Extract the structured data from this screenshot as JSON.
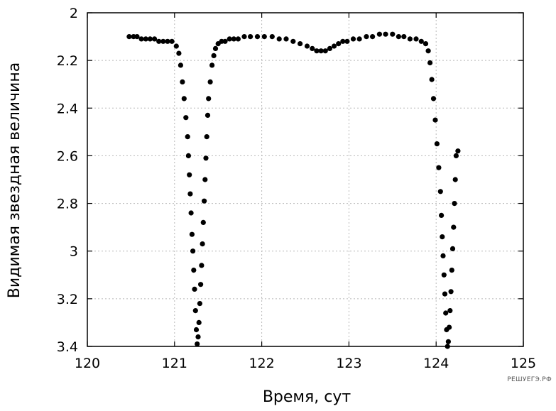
{
  "chart_data": {
    "type": "scatter",
    "xlabel": "Время, сут",
    "ylabel": "Видимая звездная величина",
    "xlim": [
      120,
      125
    ],
    "ylim": [
      2,
      3.4
    ],
    "y_inverted": true,
    "grid": true,
    "xticks": [
      "120",
      "121",
      "122",
      "123",
      "124",
      "125"
    ],
    "yticks": [
      "2",
      "2.2",
      "2.4",
      "2.6",
      "2.8",
      "3",
      "3.2",
      "3.4"
    ],
    "point_color": "#000000",
    "series": [
      {
        "x": [
          120.48,
          120.53,
          120.57,
          120.62,
          120.67,
          120.72,
          120.77,
          120.82,
          120.87,
          120.92,
          120.97,
          121.02,
          121.05,
          121.07,
          121.09,
          121.11,
          121.13,
          121.15,
          121.16,
          121.17,
          121.18,
          121.19,
          121.2,
          121.21,
          121.22,
          121.23,
          121.24,
          121.25,
          121.26,
          121.27,
          121.28,
          121.29,
          121.3,
          121.31,
          121.32,
          121.33,
          121.34,
          121.35,
          121.36,
          121.37,
          121.38,
          121.39,
          121.41,
          121.43,
          121.45,
          121.47,
          121.5,
          121.54,
          121.58,
          121.63,
          121.68,
          121.73,
          121.8,
          121.87,
          121.95,
          122.03,
          122.12,
          122.2,
          122.28,
          122.36,
          122.44,
          122.52,
          122.58,
          122.63,
          122.68,
          122.73,
          122.78,
          122.83,
          122.88,
          122.93,
          122.98,
          123.05,
          123.12,
          123.2,
          123.27,
          123.35,
          123.42,
          123.5,
          123.57,
          123.63,
          123.7,
          123.77,
          123.83,
          123.88,
          123.91,
          123.93,
          123.95,
          123.97,
          123.99,
          124.01,
          124.03,
          124.05,
          124.06,
          124.07,
          124.08,
          124.09,
          124.1,
          124.11,
          124.12,
          124.13,
          124.14,
          124.15,
          124.16,
          124.17,
          124.18,
          124.19,
          124.2,
          124.21,
          124.22,
          124.23,
          124.25
        ],
        "y": [
          2.1,
          2.1,
          2.1,
          2.11,
          2.11,
          2.11,
          2.11,
          2.12,
          2.12,
          2.12,
          2.12,
          2.14,
          2.17,
          2.22,
          2.29,
          2.36,
          2.44,
          2.52,
          2.6,
          2.68,
          2.76,
          2.84,
          2.93,
          3.0,
          3.08,
          3.16,
          3.25,
          3.33,
          3.39,
          3.36,
          3.3,
          3.22,
          3.14,
          3.06,
          2.97,
          2.88,
          2.79,
          2.7,
          2.61,
          2.52,
          2.43,
          2.36,
          2.29,
          2.22,
          2.18,
          2.15,
          2.13,
          2.12,
          2.12,
          2.11,
          2.11,
          2.11,
          2.1,
          2.1,
          2.1,
          2.1,
          2.1,
          2.11,
          2.11,
          2.12,
          2.13,
          2.14,
          2.15,
          2.16,
          2.16,
          2.16,
          2.15,
          2.14,
          2.13,
          2.12,
          2.12,
          2.11,
          2.11,
          2.1,
          2.1,
          2.09,
          2.09,
          2.09,
          2.1,
          2.1,
          2.11,
          2.11,
          2.12,
          2.13,
          2.16,
          2.21,
          2.28,
          2.36,
          2.45,
          2.55,
          2.65,
          2.75,
          2.85,
          2.94,
          3.02,
          3.1,
          3.18,
          3.26,
          3.33,
          3.4,
          3.38,
          3.32,
          3.25,
          3.17,
          3.08,
          2.99,
          2.9,
          2.8,
          2.7,
          2.6,
          2.58
        ]
      }
    ]
  },
  "watermark": "РЕШУЕГЭ.РФ"
}
